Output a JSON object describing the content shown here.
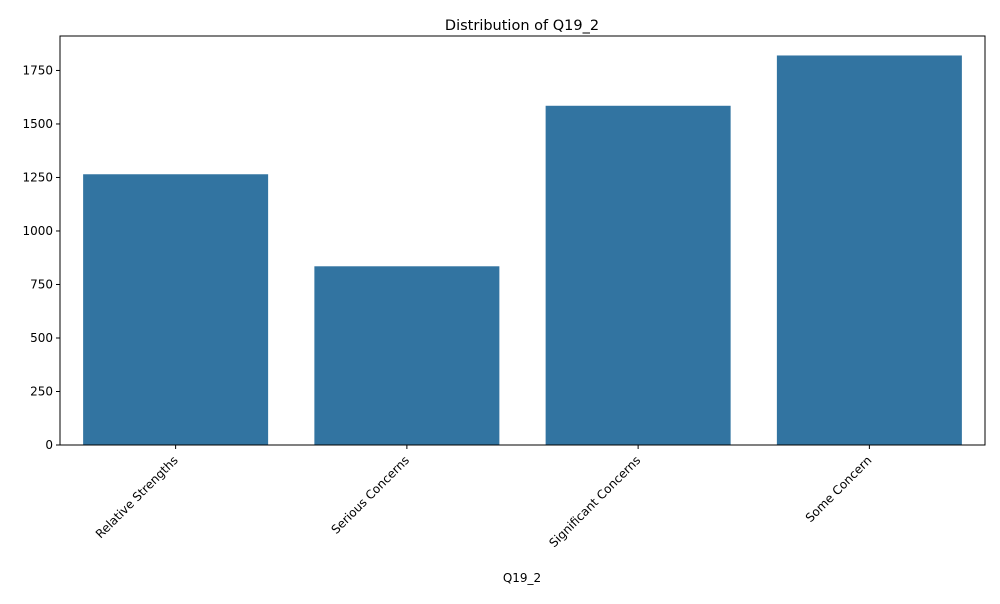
{
  "chart_data": {
    "type": "bar",
    "title": "Distribution of Q19_2",
    "xlabel": "Q19_2",
    "ylabel": "",
    "categories": [
      "Relative Strengths",
      "Serious Concerns",
      "Significant Concerns",
      "Some Concern"
    ],
    "values": [
      1265,
      835,
      1585,
      1820
    ],
    "ylim": [
      0,
      1911
    ],
    "yticks": [
      0,
      250,
      500,
      750,
      1000,
      1250,
      1500,
      1750
    ],
    "grid": false,
    "legend": "none",
    "colors": {
      "bar": "#3274a1",
      "axis": "#000000",
      "background": "#ffffff"
    }
  }
}
